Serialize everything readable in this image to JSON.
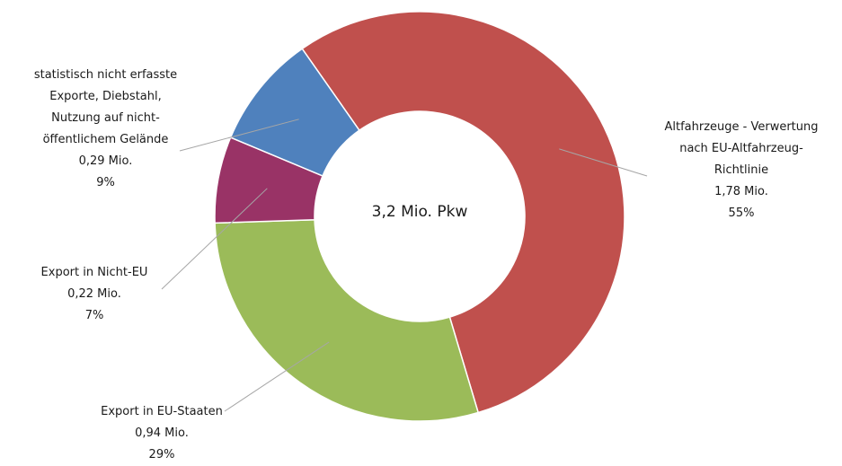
{
  "chart_data": {
    "type": "pie",
    "subtype": "donut",
    "center_label": "3,2 Mio. Pkw",
    "title": "",
    "slices": [
      {
        "label_lines": [
          "Altfahrzeuge - Verwertung",
          "nach EU-Altfahrzeug-",
          "Richtlinie"
        ],
        "value": 1.78,
        "value_label": "1,78 Mio.",
        "percent": 55,
        "percent_label": "55%",
        "color": "#c0504d"
      },
      {
        "label_lines": [
          "Export in EU-Staaten"
        ],
        "value": 0.94,
        "value_label": "0,94 Mio.",
        "percent": 29,
        "percent_label": "29%",
        "color": "#9bbb59"
      },
      {
        "label_lines": [
          "Export in Nicht-EU"
        ],
        "value": 0.22,
        "value_label": "0,22 Mio.",
        "percent": 7,
        "percent_label": "7%",
        "color": "#993366"
      },
      {
        "label_lines": [
          "statistisch nicht erfasste",
          "Exporte, Diebstahl,",
          "Nutzung auf nicht-",
          "öffentlichem Gelände"
        ],
        "value": 0.29,
        "value_label": "0,29 Mio.",
        "percent": 9,
        "percent_label": "9%",
        "color": "#4f81bd"
      }
    ],
    "start_angle_deg": -35,
    "legend": "none"
  }
}
